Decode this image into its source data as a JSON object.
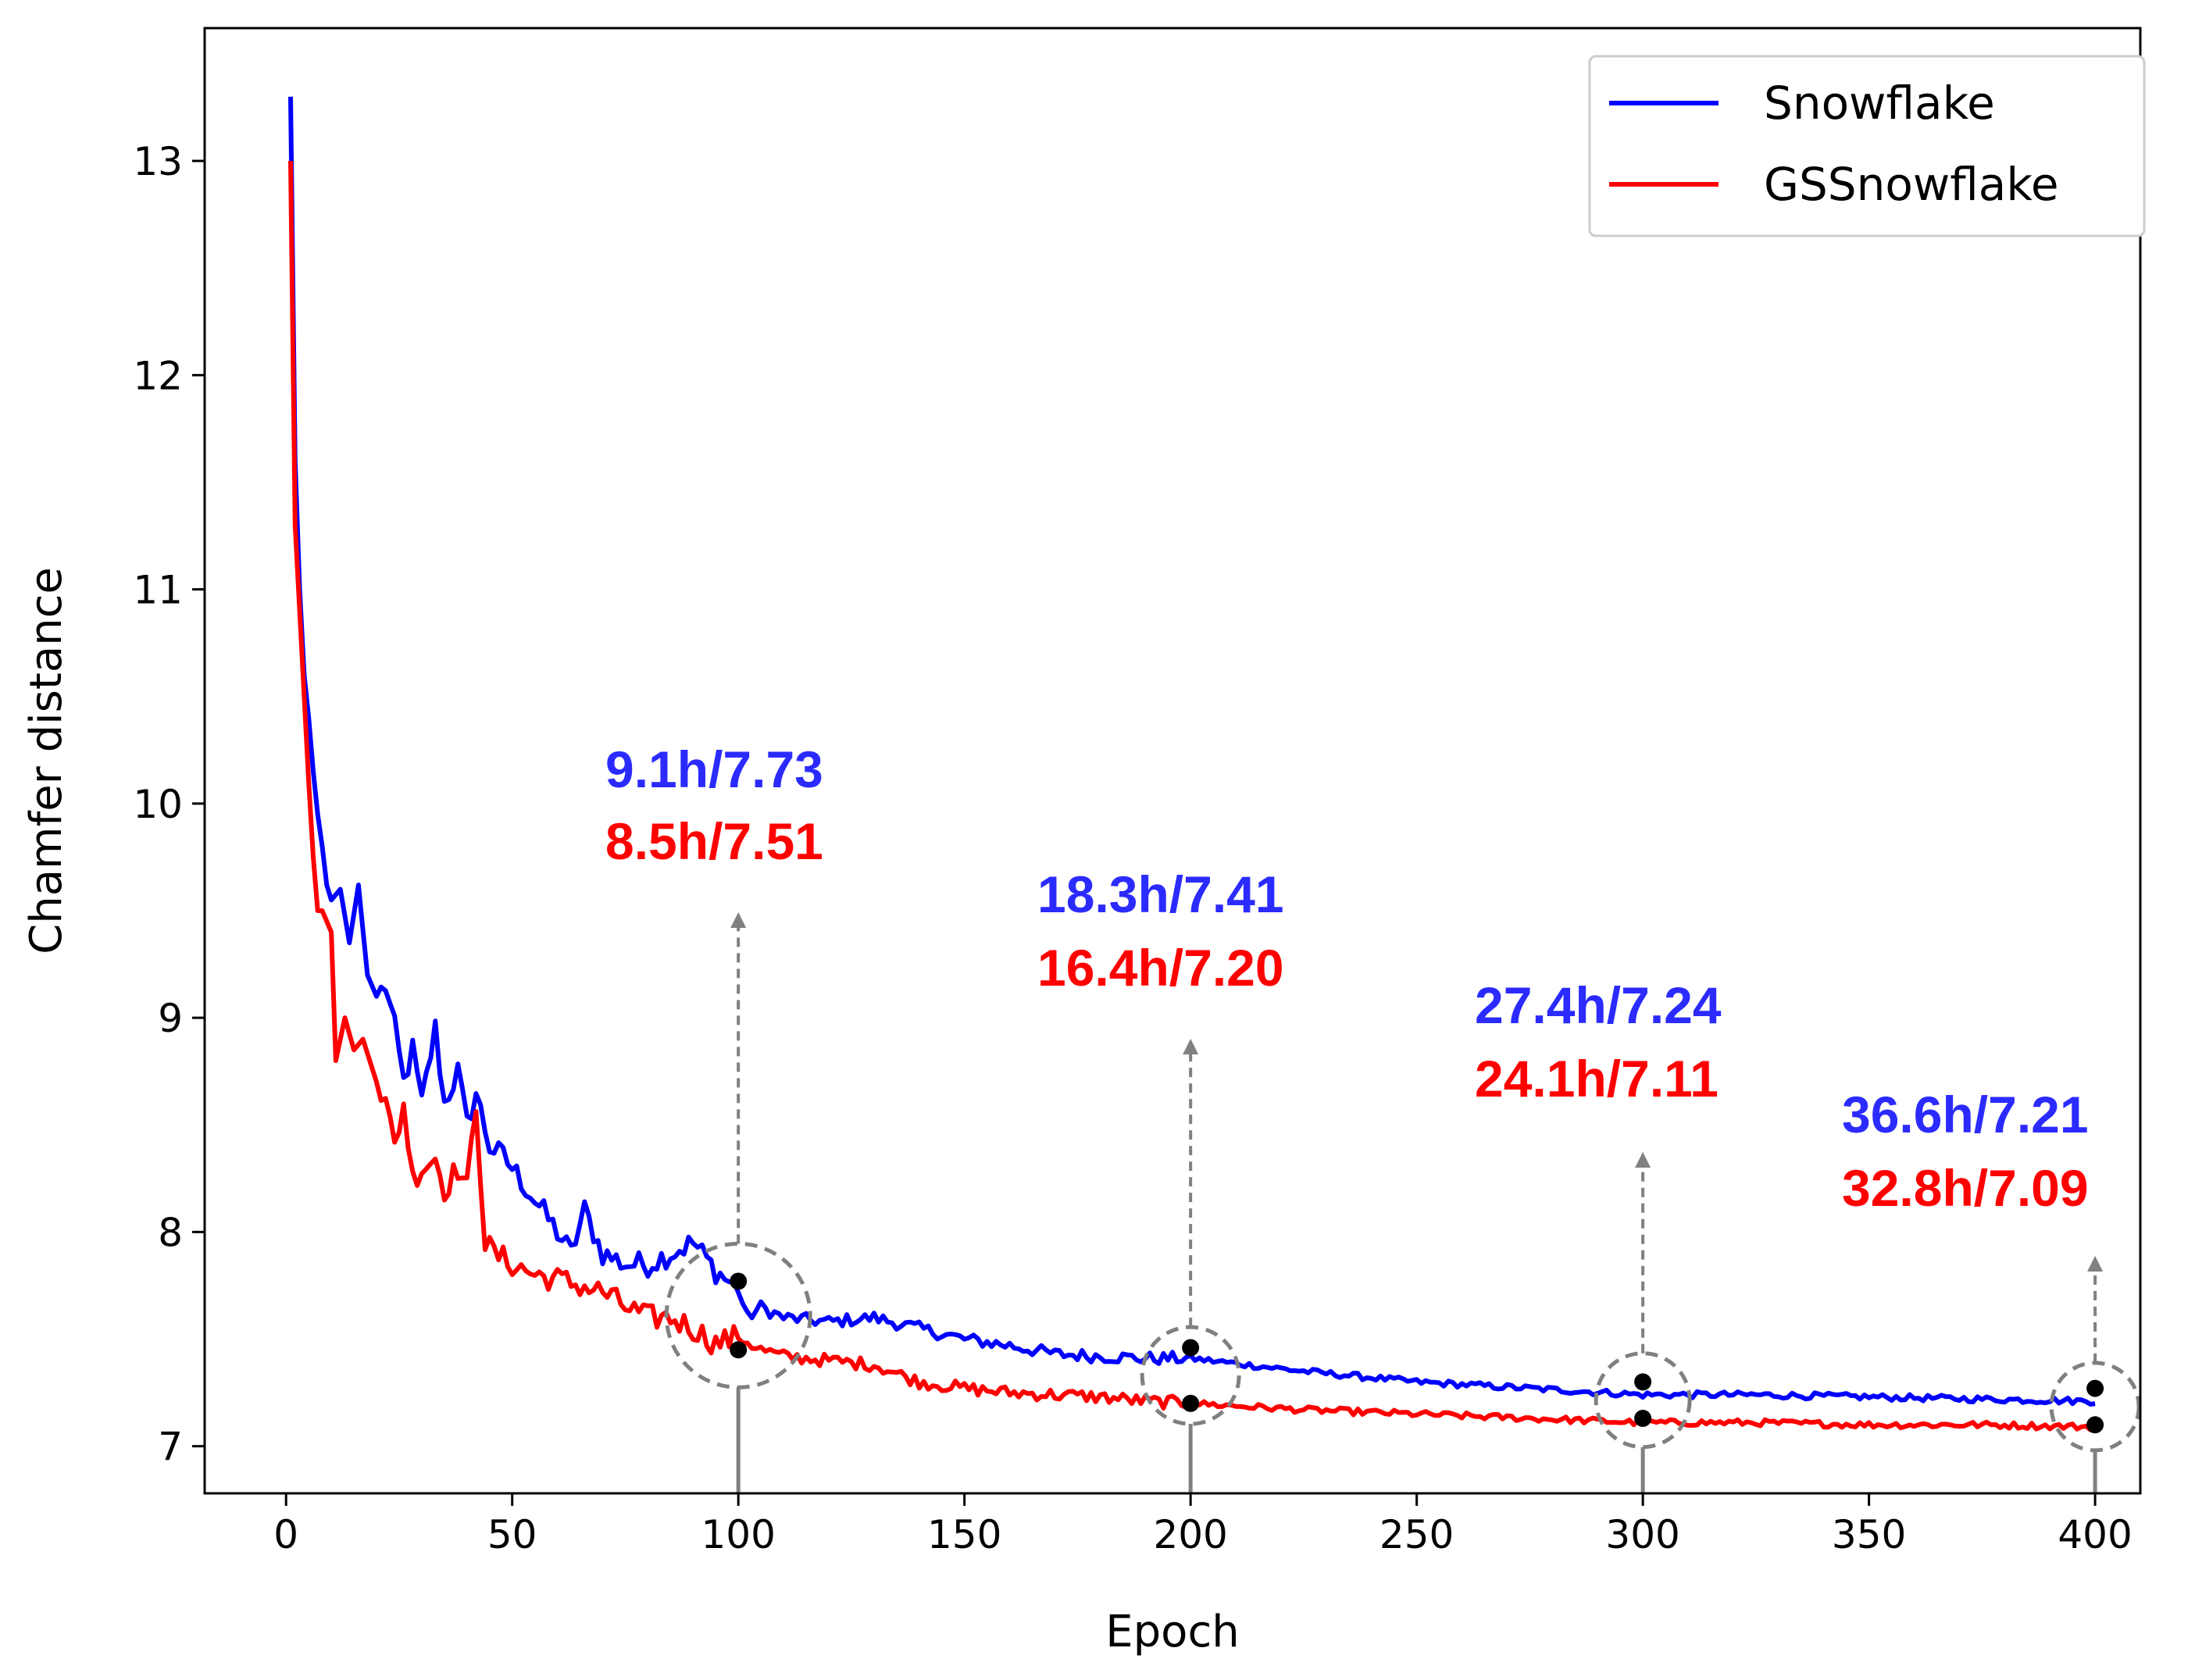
{
  "chart_data": {
    "type": "line",
    "title": "",
    "xlabel": "Epoch",
    "ylabel": "Chamfer distance",
    "xlim": [
      -18,
      410
    ],
    "ylim": [
      6.78,
      13.62
    ],
    "xticks": [
      0,
      50,
      100,
      150,
      200,
      250,
      300,
      350,
      400
    ],
    "yticks": [
      7,
      8,
      9,
      10,
      11,
      12,
      13
    ],
    "grid": false,
    "legend_position": "top-right",
    "colors": {
      "Snowflake": "#0000ff",
      "GSSnowflake": "#ff0000",
      "marker": "#000000",
      "guide": "#808080"
    },
    "series": [
      {
        "name": "Snowflake",
        "color": "#0000ff",
        "keypoints": [
          [
            1,
            13.3
          ],
          [
            2,
            11.6
          ],
          [
            3,
            11.0
          ],
          [
            4,
            10.6
          ],
          [
            5,
            10.4
          ],
          [
            6,
            10.15
          ],
          [
            7,
            9.95
          ],
          [
            8,
            9.8
          ],
          [
            9,
            9.62
          ],
          [
            10,
            9.55
          ],
          [
            12,
            9.6
          ],
          [
            14,
            9.35
          ],
          [
            16,
            9.62
          ],
          [
            18,
            9.2
          ],
          [
            20,
            9.1
          ],
          [
            22,
            9.15
          ],
          [
            24,
            8.95
          ],
          [
            26,
            8.7
          ],
          [
            28,
            8.85
          ],
          [
            30,
            8.6
          ],
          [
            33,
            8.95
          ],
          [
            35,
            8.6
          ],
          [
            38,
            8.75
          ],
          [
            40,
            8.5
          ],
          [
            42,
            8.65
          ],
          [
            45,
            8.4
          ],
          [
            48,
            8.35
          ],
          [
            50,
            8.3
          ],
          [
            55,
            8.15
          ],
          [
            60,
            8.0
          ],
          [
            63,
            7.9
          ],
          [
            66,
            8.1
          ],
          [
            70,
            7.9
          ],
          [
            75,
            7.85
          ],
          [
            80,
            7.85
          ],
          [
            85,
            7.9
          ],
          [
            90,
            7.95
          ],
          [
            95,
            7.82
          ],
          [
            100,
            7.73
          ],
          [
            102,
            7.6
          ],
          [
            105,
            7.65
          ],
          [
            110,
            7.6
          ],
          [
            120,
            7.58
          ],
          [
            130,
            7.6
          ],
          [
            140,
            7.55
          ],
          [
            150,
            7.5
          ],
          [
            160,
            7.47
          ],
          [
            170,
            7.43
          ],
          [
            180,
            7.42
          ],
          [
            190,
            7.41
          ],
          [
            200,
            7.41
          ],
          [
            225,
            7.35
          ],
          [
            250,
            7.3
          ],
          [
            275,
            7.27
          ],
          [
            300,
            7.24
          ],
          [
            325,
            7.24
          ],
          [
            350,
            7.23
          ],
          [
            375,
            7.22
          ],
          [
            400,
            7.21
          ]
        ]
      },
      {
        "name": "GSSnowflake",
        "color": "#ff0000",
        "keypoints": [
          [
            1,
            13.0
          ],
          [
            2,
            11.3
          ],
          [
            3,
            10.9
          ],
          [
            4,
            10.5
          ],
          [
            5,
            10.1
          ],
          [
            6,
            9.75
          ],
          [
            7,
            9.5
          ],
          [
            8,
            9.5
          ],
          [
            10,
            9.4
          ],
          [
            11,
            8.8
          ],
          [
            13,
            9.0
          ],
          [
            15,
            8.85
          ],
          [
            17,
            8.9
          ],
          [
            20,
            8.7
          ],
          [
            22,
            8.6
          ],
          [
            24,
            8.4
          ],
          [
            26,
            8.6
          ],
          [
            28,
            8.25
          ],
          [
            30,
            8.3
          ],
          [
            33,
            8.35
          ],
          [
            35,
            8.2
          ],
          [
            38,
            8.3
          ],
          [
            40,
            8.2
          ],
          [
            42,
            8.6
          ],
          [
            44,
            7.95
          ],
          [
            46,
            7.9
          ],
          [
            50,
            7.85
          ],
          [
            55,
            7.8
          ],
          [
            60,
            7.78
          ],
          [
            65,
            7.75
          ],
          [
            70,
            7.72
          ],
          [
            75,
            7.65
          ],
          [
            80,
            7.6
          ],
          [
            85,
            7.6
          ],
          [
            90,
            7.55
          ],
          [
            95,
            7.48
          ],
          [
            100,
            7.51
          ],
          [
            105,
            7.45
          ],
          [
            110,
            7.42
          ],
          [
            120,
            7.4
          ],
          [
            130,
            7.38
          ],
          [
            140,
            7.3
          ],
          [
            150,
            7.27
          ],
          [
            160,
            7.25
          ],
          [
            170,
            7.24
          ],
          [
            180,
            7.23
          ],
          [
            190,
            7.21
          ],
          [
            200,
            7.2
          ],
          [
            225,
            7.17
          ],
          [
            250,
            7.15
          ],
          [
            275,
            7.13
          ],
          [
            300,
            7.11
          ],
          [
            325,
            7.11
          ],
          [
            350,
            7.1
          ],
          [
            375,
            7.1
          ],
          [
            400,
            7.09
          ]
        ]
      }
    ],
    "markers": [
      {
        "x": 100,
        "snowflake": 7.77,
        "gssnowflake": 7.45
      },
      {
        "x": 200,
        "snowflake": 7.46,
        "gssnowflake": 7.2
      },
      {
        "x": 300,
        "snowflake": 7.3,
        "gssnowflake": 7.13
      },
      {
        "x": 400,
        "snowflake": 7.27,
        "gssnowflake": 7.1
      }
    ],
    "annotations": [
      {
        "epoch": 100,
        "snowflake": "9.1h/7.73",
        "gssnowflake": "8.5h/7.51"
      },
      {
        "epoch": 200,
        "snowflake": "18.3h/7.41",
        "gssnowflake": "16.4h/7.20"
      },
      {
        "epoch": 300,
        "snowflake": "27.4h/7.24",
        "gssnowflake": "24.1h/7.11"
      },
      {
        "epoch": 400,
        "snowflake": "36.6h/7.21",
        "gssnowflake": "32.8h/7.09"
      }
    ]
  }
}
